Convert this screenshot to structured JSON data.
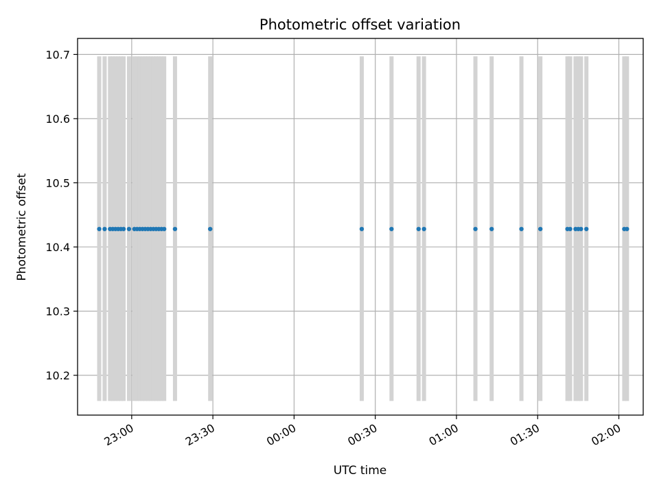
{
  "chart_data": {
    "type": "scatter",
    "title": "Photometric offset variation",
    "xlabel": "UTC time",
    "ylabel": "Photometric offset",
    "x_axis": "time",
    "x_range": [
      "22:40",
      "02:09"
    ],
    "ylim": [
      10.138,
      10.725
    ],
    "grid": true,
    "y_ticks": [
      10.2,
      10.3,
      10.4,
      10.5,
      10.6,
      10.7
    ],
    "y_tick_labels": [
      "10.2",
      "10.3",
      "10.4",
      "10.5",
      "10.6",
      "10.7"
    ],
    "x_ticks": [
      "23:00",
      "23:30",
      "00:00",
      "00:30",
      "01:00",
      "01:30",
      "02:00"
    ],
    "x_tick_labels": [
      "23:00",
      "23:30",
      "00:00",
      "00:30",
      "01:00",
      "01:30",
      "02:00"
    ],
    "marker_color": "#1f77b4",
    "errorbar_color": "#d3d3d3",
    "errorbar_range": [
      10.16,
      10.697
    ],
    "points": [
      {
        "t": "22:48",
        "y": 10.428
      },
      {
        "t": "22:50",
        "y": 10.428
      },
      {
        "t": "22:52",
        "y": 10.428
      },
      {
        "t": "22:53",
        "y": 10.428
      },
      {
        "t": "22:54",
        "y": 10.428
      },
      {
        "t": "22:55",
        "y": 10.428
      },
      {
        "t": "22:56",
        "y": 10.428
      },
      {
        "t": "22:57",
        "y": 10.428
      },
      {
        "t": "22:59",
        "y": 10.428
      },
      {
        "t": "23:01",
        "y": 10.428
      },
      {
        "t": "23:02",
        "y": 10.428
      },
      {
        "t": "23:03",
        "y": 10.428
      },
      {
        "t": "23:04",
        "y": 10.428
      },
      {
        "t": "23:05",
        "y": 10.428
      },
      {
        "t": "23:06",
        "y": 10.428
      },
      {
        "t": "23:07",
        "y": 10.428
      },
      {
        "t": "23:08",
        "y": 10.428
      },
      {
        "t": "23:09",
        "y": 10.428
      },
      {
        "t": "23:10",
        "y": 10.428
      },
      {
        "t": "23:11",
        "y": 10.428
      },
      {
        "t": "23:12",
        "y": 10.428
      },
      {
        "t": "23:16",
        "y": 10.428
      },
      {
        "t": "23:29",
        "y": 10.428
      },
      {
        "t": "00:25",
        "y": 10.428
      },
      {
        "t": "00:36",
        "y": 10.428
      },
      {
        "t": "00:46",
        "y": 10.428
      },
      {
        "t": "00:48",
        "y": 10.428
      },
      {
        "t": "01:07",
        "y": 10.428
      },
      {
        "t": "01:13",
        "y": 10.428
      },
      {
        "t": "01:24",
        "y": 10.428
      },
      {
        "t": "01:31",
        "y": 10.428
      },
      {
        "t": "01:41",
        "y": 10.428
      },
      {
        "t": "01:42",
        "y": 10.428
      },
      {
        "t": "01:44",
        "y": 10.428
      },
      {
        "t": "01:45",
        "y": 10.428
      },
      {
        "t": "01:46",
        "y": 10.428
      },
      {
        "t": "01:48",
        "y": 10.428
      },
      {
        "t": "02:02",
        "y": 10.428
      },
      {
        "t": "02:03",
        "y": 10.428
      }
    ]
  }
}
